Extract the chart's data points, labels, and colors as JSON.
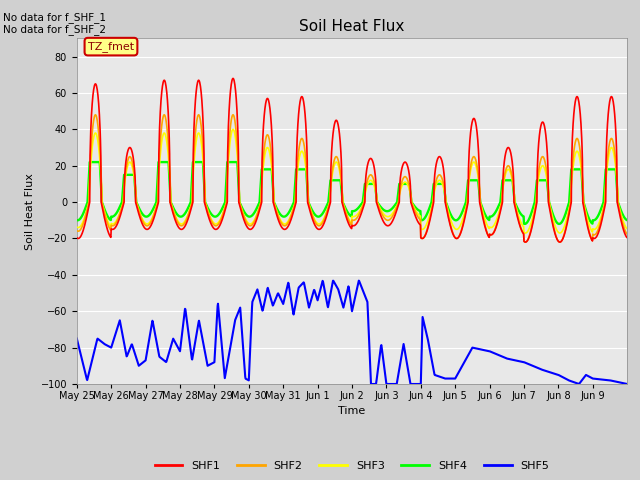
{
  "title": "Soil Heat Flux",
  "ylabel": "Soil Heat Flux",
  "xlabel": "Time",
  "ylim": [
    -100,
    90
  ],
  "yticks": [
    -100,
    -80,
    -60,
    -40,
    -20,
    0,
    20,
    40,
    60,
    80
  ],
  "annotations": [
    "No data for f_SHF_1",
    "No data for f_SHF_2"
  ],
  "tz_label": "TZ_fmet",
  "colors": {
    "SHF1": "#FF0000",
    "SHF2": "#FFA500",
    "SHF3": "#FFFF00",
    "SHF4": "#00FF00",
    "SHF5": "#0000FF"
  },
  "legend_entries": [
    "SHF1",
    "SHF2",
    "SHF3",
    "SHF4",
    "SHF5"
  ],
  "xtick_labels": [
    "May 25",
    "May 26",
    "May 27",
    "May 28",
    "May 29",
    "May 30",
    "May 31",
    "Jun 1",
    "Jun 2",
    "Jun 3",
    "Jun 4",
    "Jun 5",
    "Jun 6",
    "Jun 7",
    "Jun 8",
    "Jun 9"
  ],
  "fig_bg_color": "#D0D0D0",
  "plot_bg_color": "#E8E8E8",
  "grid_color": "#FFFFFF",
  "n_days": 16,
  "shf1_peaks": [
    65,
    30,
    67,
    67,
    68,
    57,
    58,
    45,
    24,
    22,
    25,
    46,
    30,
    44,
    58,
    58
  ],
  "shf1_troughs": [
    -20,
    -15,
    -15,
    -15,
    -15,
    -15,
    -15,
    -15,
    -13,
    -13,
    -20,
    -20,
    -18,
    -22,
    -22,
    -20
  ],
  "shf2_peaks": [
    48,
    25,
    48,
    48,
    48,
    37,
    35,
    25,
    15,
    14,
    15,
    25,
    20,
    25,
    35,
    35
  ],
  "shf2_troughs": [
    -16,
    -13,
    -13,
    -13,
    -13,
    -13,
    -13,
    -13,
    -10,
    -10,
    -20,
    -20,
    -18,
    -22,
    -22,
    -18
  ],
  "shf3_peaks": [
    38,
    22,
    38,
    38,
    40,
    30,
    28,
    22,
    12,
    11,
    12,
    22,
    18,
    20,
    28,
    30
  ],
  "shf3_troughs": [
    -14,
    -12,
    -12,
    -12,
    -12,
    -12,
    -12,
    -12,
    -8,
    -8,
    -15,
    -15,
    -14,
    -17,
    -17,
    -15
  ],
  "shf4_peaks": [
    22,
    15,
    22,
    22,
    22,
    18,
    18,
    12,
    10,
    10,
    10,
    12,
    12,
    12,
    18,
    18
  ],
  "shf4_troughs": [
    -10,
    -8,
    -8,
    -8,
    -8,
    -8,
    -8,
    -8,
    -5,
    -5,
    -10,
    -10,
    -8,
    -12,
    -12,
    -10
  ],
  "linewidth": 1.2,
  "title_fontsize": 11,
  "label_fontsize": 8,
  "tick_fontsize": 7
}
